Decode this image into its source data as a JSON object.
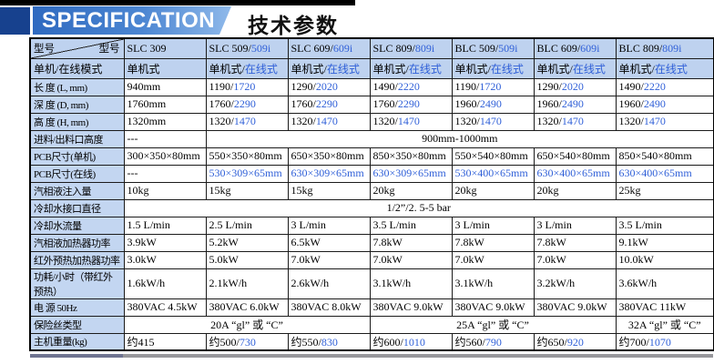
{
  "page": {
    "title": "SPECIFICATION",
    "subtitle": "技术参数"
  },
  "colors": {
    "accent_blue_text": "#3060d8",
    "band_gradient_start": "#2f6ac0",
    "band_gradient_end": "#8fb9ea",
    "navy_block": "#17418e",
    "header_cell_bg": "#bed2ef",
    "label_cell_bg": "#c3d6f1"
  },
  "table": {
    "corner": {
      "left": "型号",
      "right": "型号"
    },
    "header_rows": [
      {
        "corner": true,
        "cells": [
          {
            "t": "SLC 309"
          },
          {
            "t": "SLC 509/",
            "b": "509i"
          },
          {
            "t": "SLC 609/",
            "b": "609i"
          },
          {
            "t": "SLC 809/",
            "b": "809i"
          },
          {
            "t": "BLC 509/",
            "b": "509i"
          },
          {
            "t": "BLC 609/",
            "b": "609i"
          },
          {
            "t": "BLC 809/",
            "b": "809i"
          }
        ]
      },
      {
        "label": "单机/在线模式",
        "cells": [
          {
            "t": "单机式"
          },
          {
            "t": "单机式/",
            "b": "在线式"
          },
          {
            "t": "单机式/",
            "b": "在线式"
          },
          {
            "t": "单机式/",
            "b": "在线式"
          },
          {
            "t": "单机式/",
            "b": "在线式"
          },
          {
            "t": "单机式/",
            "b": "在线式"
          },
          {
            "t": "单机式/",
            "b": "在线式"
          }
        ]
      }
    ],
    "rows": [
      {
        "label": "长 度 (L, mm)",
        "cells": [
          {
            "t": "940mm"
          },
          {
            "t": "1190/",
            "b": "1720"
          },
          {
            "t": "1290/",
            "b": "2020"
          },
          {
            "t": "1490/",
            "b": "2220"
          },
          {
            "t": "1190/",
            "b": "1720"
          },
          {
            "t": "1290/",
            "b": "2020"
          },
          {
            "t": "1490/",
            "b": "2220"
          }
        ]
      },
      {
        "label": "深 度 (D, mm)",
        "cells": [
          {
            "t": "1760mm"
          },
          {
            "t": "1760/",
            "b": "2290"
          },
          {
            "t": "1760/",
            "b": "2290"
          },
          {
            "t": "1760/",
            "b": "2290"
          },
          {
            "t": "1960/",
            "b": "2490"
          },
          {
            "t": "1960/",
            "b": "2490"
          },
          {
            "t": "1960/",
            "b": "2490"
          }
        ]
      },
      {
        "label": "高 度 (H, mm)",
        "cells": [
          {
            "t": "1320mm"
          },
          {
            "t": "1320/",
            "b": "1470"
          },
          {
            "t": "1320/",
            "b": "1470"
          },
          {
            "t": "1320/",
            "b": "1470"
          },
          {
            "t": "1320/",
            "b": "1470"
          },
          {
            "t": "1320/",
            "b": "1470"
          },
          {
            "t": "1320/",
            "b": "1470"
          }
        ]
      },
      {
        "label": "进料/出料口高度",
        "cells": [
          {
            "t": "---"
          },
          {
            "t": "900mm-1000mm",
            "span": 6,
            "center": true
          }
        ]
      },
      {
        "label": "PCB尺寸(单机)",
        "cells": [
          {
            "t": "300×350×80mm"
          },
          {
            "t": "550×350×80mm"
          },
          {
            "t": "650×350×80mm"
          },
          {
            "t": "850×350×80mm"
          },
          {
            "t": "550×540×80mm"
          },
          {
            "t": "650×540×80mm"
          },
          {
            "t": "850×540×80mm"
          }
        ]
      },
      {
        "label": "PCB尺寸(在线)",
        "cells": [
          {
            "t": "---"
          },
          {
            "b": "530×309×65mm"
          },
          {
            "b": "630×309×65mm"
          },
          {
            "b": "630×309×65mm"
          },
          {
            "b": "530×400×65mm"
          },
          {
            "b": "630×400×65mm"
          },
          {
            "b": "630×400×65mm"
          }
        ]
      },
      {
        "label": "汽相液注入量",
        "cells": [
          {
            "t": "10kg"
          },
          {
            "t": "15kg"
          },
          {
            "t": "15kg"
          },
          {
            "t": "20kg"
          },
          {
            "t": "20kg"
          },
          {
            "t": "20kg"
          },
          {
            "t": "25kg"
          }
        ]
      },
      {
        "label": "冷却水接口直径",
        "cells": [
          {
            "t": "1/2”/2. 5-5  bar",
            "span": 7,
            "center": true
          }
        ]
      },
      {
        "label": "冷却水流量",
        "cells": [
          {
            "t": "1.5 L/min"
          },
          {
            "t": "2.5 L/min"
          },
          {
            "t": "3 L/min"
          },
          {
            "t": "3.5 L/min"
          },
          {
            "t": "3 L/min"
          },
          {
            "t": "3 L/min"
          },
          {
            "t": "3.5 L/min"
          }
        ]
      },
      {
        "label": "汽相液加热器功率",
        "cells": [
          {
            "t": "3.9kW"
          },
          {
            "t": "5.2kW"
          },
          {
            "t": "6.5kW"
          },
          {
            "t": "7.8kW"
          },
          {
            "t": "7.8kW"
          },
          {
            "t": "7.8kW"
          },
          {
            "t": "9.1kW"
          }
        ]
      },
      {
        "label": "红外预热加热器功率",
        "cells": [
          {
            "t": "3.0kW"
          },
          {
            "t": "5.0kW"
          },
          {
            "t": "7.0kW"
          },
          {
            "t": "7.0kW"
          },
          {
            "t": "7.0kW"
          },
          {
            "t": "7.0kW"
          },
          {
            "t": "10.0kW"
          }
        ]
      },
      {
        "label": "功耗/小时（带红外预热）",
        "cells": [
          {
            "t": "1.6kW/h"
          },
          {
            "t": "2.1kW/h"
          },
          {
            "t": "2.6kW/h"
          },
          {
            "t": "3.1kW/h"
          },
          {
            "t": "3.1kW/h"
          },
          {
            "t": "3.2kW/h"
          },
          {
            "t": "3.6kW/h"
          }
        ]
      },
      {
        "label": "电 源 50Hz",
        "cells": [
          {
            "t": "380VAC 4.5kW"
          },
          {
            "t": "380VAC 6.0kW"
          },
          {
            "t": "380VAC 8.0kW"
          },
          {
            "t": "380VAC 9.0kW"
          },
          {
            "t": "380VAC 9.0kW"
          },
          {
            "t": "380VAC 9.0kW"
          },
          {
            "t": "380VAC 11kW"
          }
        ]
      },
      {
        "label": "保险丝类型",
        "cells": [
          {
            "t": "20A “gl” 或 “C”",
            "span": 3,
            "center": true
          },
          {
            "t": "25A “gl” 或 “C”",
            "span": 3,
            "center": true
          },
          {
            "t": "32A “gl” 或 “C”",
            "center": true
          }
        ]
      },
      {
        "label": "主机重量(kg)",
        "cells": [
          {
            "t": "约415"
          },
          {
            "t": "约500/",
            "b": "730"
          },
          {
            "t": "约550/",
            "b": "830"
          },
          {
            "t": "约600/",
            "b": "1010"
          },
          {
            "t": "约560/",
            "b": "790"
          },
          {
            "t": "约650/",
            "b": "920"
          },
          {
            "t": "约700/",
            "b": "1070"
          }
        ]
      }
    ]
  }
}
